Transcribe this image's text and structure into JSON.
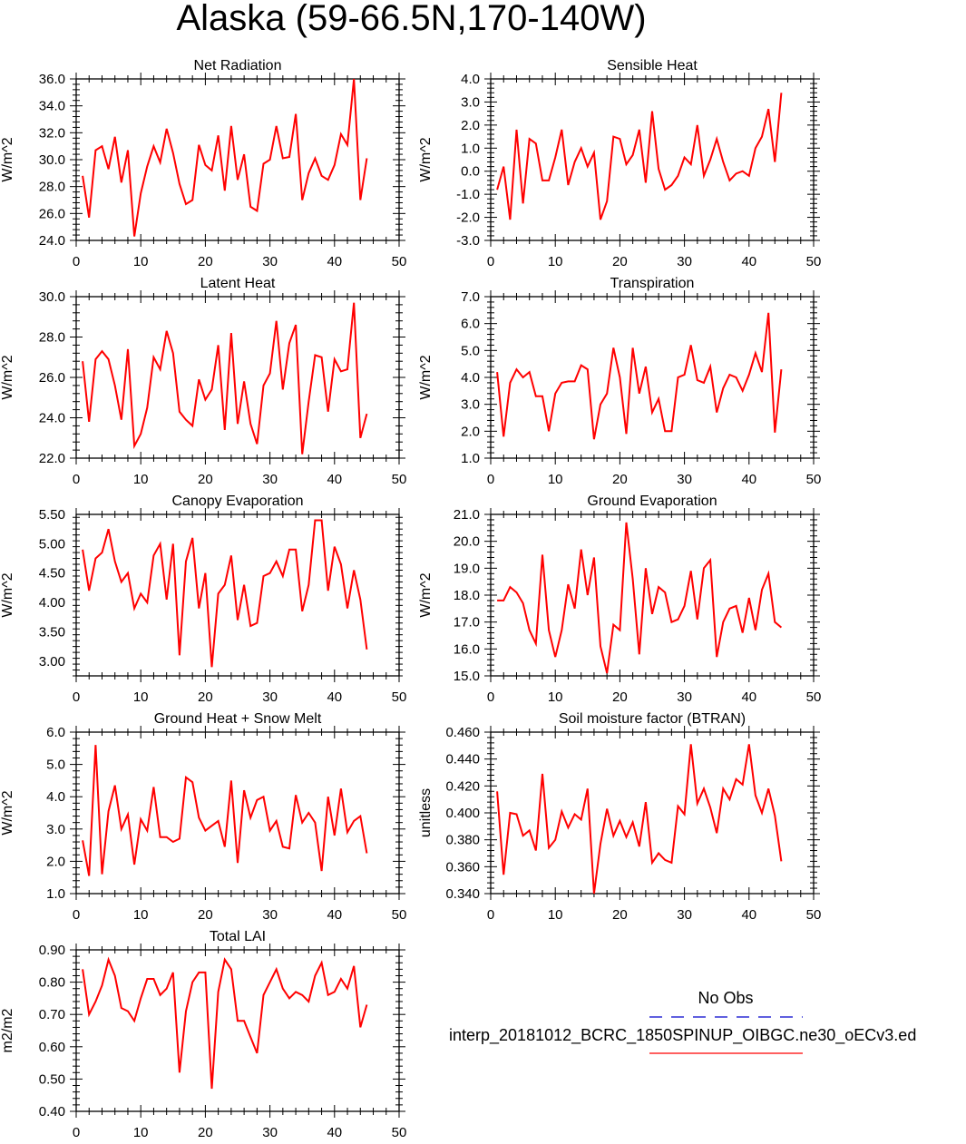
{
  "title": "Alaska (59-66.5N,170-140W)",
  "colors": {
    "model_line": "#ff0000",
    "obs_line": "#0000cc",
    "axis": "#000000"
  },
  "legend": {
    "obs_label": "No Obs",
    "model_label": "interp_20181012_BCRC_1850SPINUP_OIBGC.ne30_oECv3.ed"
  },
  "chart_data": [
    {
      "type": "line",
      "title": "Net Radiation",
      "ylabel": "W/m^2",
      "xlabel": "",
      "xlim": [
        0,
        50
      ],
      "ylim": [
        24,
        36
      ],
      "xticks": [
        0,
        10,
        20,
        30,
        40,
        50
      ],
      "yticks": [
        "24.0",
        "26.0",
        "28.0",
        "30.0",
        "32.0",
        "34.0",
        "36.0"
      ],
      "series": [
        {
          "values": [
            28.8,
            25.7,
            30.7,
            31.0,
            29.3,
            31.7,
            28.3,
            30.7,
            24.3,
            27.5,
            29.5,
            31.0,
            29.8,
            32.3,
            30.5,
            28.2,
            26.7,
            27.0,
            31.1,
            29.6,
            29.2,
            31.8,
            27.7,
            32.5,
            28.5,
            30.4,
            26.5,
            26.2,
            29.7,
            30.0,
            32.5,
            30.1,
            30.2,
            33.4,
            27.0,
            29.0,
            30.1,
            28.8,
            28.5,
            29.6,
            31.9,
            31.1,
            36.0,
            27.0,
            30.1
          ]
        }
      ]
    },
    {
      "type": "line",
      "title": "Sensible Heat",
      "ylabel": "W/m^2",
      "xlabel": "",
      "xlim": [
        0,
        50
      ],
      "ylim": [
        -3,
        4
      ],
      "xticks": [
        0,
        10,
        20,
        30,
        40,
        50
      ],
      "yticks": [
        "-3.0",
        "-2.0",
        "-1.0",
        "0.0",
        "1.0",
        "2.0",
        "3.0",
        "4.0"
      ],
      "series": [
        {
          "values": [
            -0.8,
            0.2,
            -2.1,
            1.8,
            -1.4,
            1.4,
            1.2,
            -0.4,
            -0.4,
            0.6,
            1.8,
            -0.6,
            0.4,
            1.0,
            0.2,
            0.8,
            -2.1,
            -1.3,
            1.5,
            1.4,
            0.3,
            0.7,
            1.8,
            -0.5,
            2.6,
            0.1,
            -0.8,
            -0.6,
            -0.2,
            0.6,
            0.3,
            2.0,
            -0.2,
            0.5,
            1.4,
            0.4,
            -0.4,
            -0.1,
            0.0,
            -0.2,
            1.0,
            1.5,
            2.7,
            0.4,
            3.4
          ]
        }
      ]
    },
    {
      "type": "line",
      "title": "Latent Heat",
      "ylabel": "W/m^2",
      "xlabel": "",
      "xlim": [
        0,
        50
      ],
      "ylim": [
        22,
        30
      ],
      "xticks": [
        0,
        10,
        20,
        30,
        40,
        50
      ],
      "yticks": [
        "22.0",
        "24.0",
        "26.0",
        "28.0",
        "30.0"
      ],
      "series": [
        {
          "values": [
            26.8,
            23.8,
            26.9,
            27.3,
            26.9,
            25.6,
            23.9,
            27.4,
            22.6,
            23.2,
            24.5,
            27.0,
            26.4,
            28.3,
            27.2,
            24.3,
            23.9,
            23.6,
            25.9,
            24.9,
            25.4,
            27.6,
            23.4,
            28.2,
            23.7,
            25.8,
            23.7,
            22.7,
            25.6,
            26.2,
            28.8,
            25.4,
            27.7,
            28.6,
            22.2,
            24.8,
            27.1,
            27.0,
            24.3,
            26.9,
            26.3,
            26.4,
            29.7,
            23.0,
            24.2
          ]
        }
      ]
    },
    {
      "type": "line",
      "title": "Transpiration",
      "ylabel": "W/m^2",
      "xlabel": "",
      "xlim": [
        0,
        50
      ],
      "ylim": [
        1,
        7
      ],
      "xticks": [
        0,
        10,
        20,
        30,
        40,
        50
      ],
      "yticks": [
        "1.0",
        "2.0",
        "3.0",
        "4.0",
        "5.0",
        "6.0",
        "7.0"
      ],
      "series": [
        {
          "values": [
            4.2,
            1.8,
            3.8,
            4.3,
            4.0,
            4.2,
            3.3,
            3.3,
            2.0,
            3.4,
            3.8,
            3.85,
            3.85,
            4.45,
            4.3,
            1.7,
            3.0,
            3.4,
            5.1,
            4.0,
            1.9,
            5.1,
            3.4,
            4.4,
            2.7,
            3.2,
            2.0,
            2.0,
            4.0,
            4.1,
            5.2,
            3.9,
            3.8,
            4.4,
            2.7,
            3.6,
            4.1,
            4.0,
            3.5,
            4.1,
            4.9,
            4.2,
            6.4,
            1.95,
            4.3
          ]
        }
      ]
    },
    {
      "type": "line",
      "title": "Canopy Evaporation",
      "ylabel": "W/m^2",
      "xlabel": "",
      "xlim": [
        0,
        50
      ],
      "ylim": [
        2.75,
        5.5
      ],
      "xticks": [
        0,
        10,
        20,
        30,
        40,
        50
      ],
      "yticks": [
        "3.00",
        "3.50",
        "4.00",
        "4.50",
        "5.00",
        "5.50"
      ],
      "series": [
        {
          "values": [
            4.9,
            4.2,
            4.75,
            4.85,
            5.25,
            4.7,
            4.35,
            4.5,
            3.9,
            4.15,
            4.0,
            4.8,
            5.0,
            4.05,
            5.0,
            3.1,
            4.7,
            5.1,
            3.9,
            4.5,
            2.9,
            4.15,
            4.3,
            4.8,
            3.7,
            4.3,
            3.6,
            3.65,
            4.45,
            4.5,
            4.7,
            4.45,
            4.9,
            4.9,
            3.85,
            4.3,
            5.4,
            5.4,
            4.2,
            4.95,
            4.65,
            3.9,
            4.55,
            4.05,
            3.2
          ]
        }
      ]
    },
    {
      "type": "line",
      "title": "Ground Evaporation",
      "ylabel": "W/m^2",
      "xlabel": "",
      "xlim": [
        0,
        50
      ],
      "ylim": [
        15,
        21
      ],
      "xticks": [
        0,
        10,
        20,
        30,
        40,
        50
      ],
      "yticks": [
        "15.0",
        "16.0",
        "17.0",
        "18.0",
        "19.0",
        "20.0",
        "21.0"
      ],
      "series": [
        {
          "values": [
            17.8,
            17.8,
            18.3,
            18.1,
            17.7,
            16.7,
            16.2,
            19.5,
            16.7,
            15.7,
            16.7,
            18.4,
            17.5,
            19.7,
            18.0,
            19.4,
            16.1,
            15.1,
            16.9,
            16.7,
            20.7,
            18.6,
            15.8,
            19.0,
            17.3,
            18.3,
            18.1,
            17.0,
            17.1,
            17.6,
            18.9,
            17.1,
            19.0,
            19.3,
            15.7,
            17.0,
            17.5,
            17.6,
            16.6,
            17.9,
            16.7,
            18.2,
            18.8,
            17.0,
            16.8
          ]
        }
      ]
    },
    {
      "type": "line",
      "title": "Ground Heat + Snow Melt",
      "ylabel": "W/m^2",
      "xlabel": "",
      "xlim": [
        0,
        50
      ],
      "ylim": [
        1,
        6
      ],
      "xticks": [
        0,
        10,
        20,
        30,
        40,
        50
      ],
      "yticks": [
        "1.0",
        "2.0",
        "3.0",
        "4.0",
        "5.0",
        "6.0"
      ],
      "series": [
        {
          "values": [
            2.65,
            1.55,
            5.6,
            1.6,
            3.55,
            4.35,
            3.0,
            3.45,
            1.9,
            3.3,
            2.95,
            4.3,
            2.75,
            2.75,
            2.6,
            2.7,
            4.6,
            4.45,
            3.35,
            2.95,
            3.1,
            3.25,
            2.45,
            4.5,
            1.95,
            4.2,
            3.35,
            3.9,
            4.0,
            2.95,
            3.25,
            2.45,
            2.4,
            4.05,
            3.2,
            3.5,
            3.2,
            1.7,
            4.0,
            2.8,
            4.25,
            2.9,
            3.25,
            3.4,
            2.25
          ]
        }
      ]
    },
    {
      "type": "line",
      "title": "Soil moisture factor (BTRAN)",
      "ylabel": "unitless",
      "xlabel": "",
      "xlim": [
        0,
        50
      ],
      "ylim": [
        0.34,
        0.46
      ],
      "xticks": [
        0,
        10,
        20,
        30,
        40,
        50
      ],
      "yticks": [
        "0.340",
        "0.360",
        "0.380",
        "0.400",
        "0.420",
        "0.440",
        "0.460"
      ],
      "series": [
        {
          "values": [
            0.416,
            0.354,
            0.4,
            0.399,
            0.383,
            0.387,
            0.372,
            0.429,
            0.374,
            0.38,
            0.401,
            0.389,
            0.399,
            0.395,
            0.418,
            0.34,
            0.377,
            0.403,
            0.383,
            0.394,
            0.382,
            0.393,
            0.375,
            0.408,
            0.363,
            0.37,
            0.365,
            0.363,
            0.405,
            0.399,
            0.451,
            0.407,
            0.418,
            0.404,
            0.385,
            0.418,
            0.41,
            0.425,
            0.421,
            0.451,
            0.413,
            0.4,
            0.418,
            0.398,
            0.364
          ]
        }
      ]
    },
    {
      "type": "line",
      "title": "Total LAI",
      "ylabel": "m2/m2",
      "xlabel": "",
      "xlim": [
        0,
        50
      ],
      "ylim": [
        0.4,
        0.9
      ],
      "xticks": [
        0,
        10,
        20,
        30,
        40,
        50
      ],
      "yticks": [
        "0.40",
        "0.50",
        "0.60",
        "0.70",
        "0.80",
        "0.90"
      ],
      "series": [
        {
          "values": [
            0.84,
            0.7,
            0.74,
            0.79,
            0.87,
            0.82,
            0.72,
            0.71,
            0.68,
            0.75,
            0.81,
            0.81,
            0.76,
            0.78,
            0.83,
            0.52,
            0.71,
            0.8,
            0.83,
            0.83,
            0.47,
            0.77,
            0.87,
            0.84,
            0.68,
            0.68,
            0.63,
            0.58,
            0.76,
            0.8,
            0.84,
            0.78,
            0.75,
            0.77,
            0.76,
            0.74,
            0.82,
            0.86,
            0.76,
            0.77,
            0.81,
            0.78,
            0.85,
            0.66,
            0.73
          ]
        }
      ]
    }
  ]
}
